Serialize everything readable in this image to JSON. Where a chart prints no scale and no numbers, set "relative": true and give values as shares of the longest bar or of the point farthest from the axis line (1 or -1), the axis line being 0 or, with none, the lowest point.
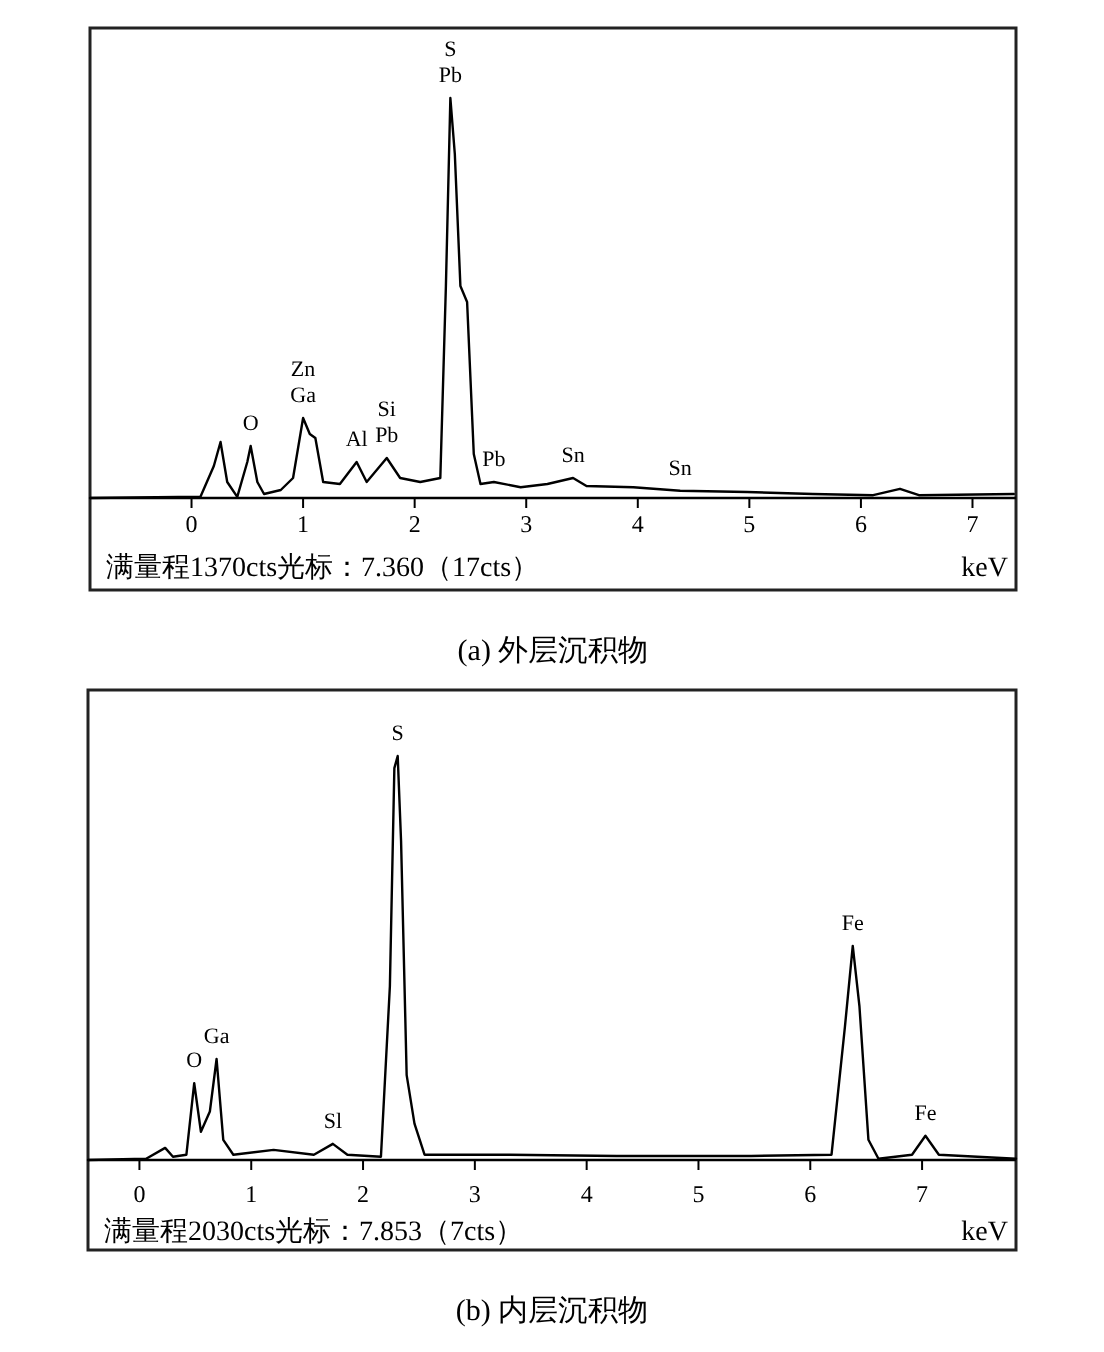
{
  "chart_data": [
    {
      "type": "line",
      "title": "(a) 外层沉积物",
      "xlabel": "keV",
      "relative": true,
      "color": "#000000",
      "xlim": [
        -0.91,
        7.39
      ],
      "xticks": [
        0,
        1,
        2,
        3,
        4,
        5,
        6,
        7
      ],
      "x": [
        -0.91,
        0.08,
        0.2,
        0.26,
        0.32,
        0.41,
        0.5,
        0.53,
        0.59,
        0.65,
        0.8,
        0.91,
        1.0,
        1.06,
        1.11,
        1.18,
        1.33,
        1.48,
        1.57,
        1.75,
        1.87,
        2.05,
        2.23,
        2.28,
        2.32,
        2.36,
        2.41,
        2.47,
        2.53,
        2.59,
        2.71,
        2.95,
        3.19,
        3.42,
        3.54,
        3.96,
        4.38,
        4.98,
        5.57,
        6.11,
        6.35,
        6.52,
        7.37
      ],
      "values": [
        0,
        0.003,
        0.08,
        0.14,
        0.04,
        0.003,
        0.09,
        0.13,
        0.04,
        0.01,
        0.02,
        0.05,
        0.2,
        0.16,
        0.15,
        0.04,
        0.035,
        0.09,
        0.04,
        0.1,
        0.05,
        0.04,
        0.05,
        0.53,
        1.0,
        0.86,
        0.53,
        0.49,
        0.11,
        0.035,
        0.04,
        0.027,
        0.035,
        0.05,
        0.03,
        0.027,
        0.018,
        0.015,
        0.01,
        0.007,
        0.023,
        0.007,
        0.01
      ],
      "annotations": [
        "满量程1370cts光标：7.360（17cts）",
        {
          "text": "O",
          "x": 0.53,
          "y": 0.13
        },
        {
          "text": "Ga",
          "x": 1.0,
          "y": 0.2
        },
        {
          "text": "Zn",
          "x": 1.0,
          "y": 0.2
        },
        {
          "text": "Al",
          "x": 1.48,
          "y": 0.09
        },
        {
          "text": "Pb",
          "x": 1.75,
          "y": 0.1
        },
        {
          "text": "Si",
          "x": 1.75,
          "y": 0.1
        },
        {
          "text": "Pb",
          "x": 2.32,
          "y": 1.0
        },
        {
          "text": "S",
          "x": 2.32,
          "y": 1.0
        },
        {
          "text": "Pb",
          "x": 2.71,
          "y": 0.04
        },
        {
          "text": "Sn",
          "x": 3.42,
          "y": 0.05
        },
        {
          "text": "Sn",
          "x": 4.38,
          "y": 0.018
        }
      ]
    },
    {
      "type": "line",
      "title": "(b) 内层沉积物",
      "xlabel": "keV",
      "relative": true,
      "color": "#000000",
      "xlim": [
        -0.46,
        7.84
      ],
      "xticks": [
        0,
        1,
        2,
        3,
        4,
        5,
        6,
        7
      ],
      "x": [
        -0.46,
        0.06,
        0.23,
        0.3,
        0.42,
        0.49,
        0.55,
        0.63,
        0.69,
        0.75,
        0.84,
        1.2,
        1.56,
        1.73,
        1.86,
        2.16,
        2.24,
        2.28,
        2.31,
        2.34,
        2.39,
        2.46,
        2.55,
        3.31,
        4.27,
        5.47,
        6.19,
        6.31,
        6.38,
        6.44,
        6.52,
        6.61,
        6.91,
        7.03,
        7.15,
        7.84
      ],
      "values": [
        0,
        0.003,
        0.03,
        0.008,
        0.013,
        0.19,
        0.07,
        0.12,
        0.25,
        0.05,
        0.013,
        0.025,
        0.013,
        0.04,
        0.013,
        0.008,
        0.43,
        0.97,
        1.0,
        0.79,
        0.21,
        0.09,
        0.013,
        0.013,
        0.01,
        0.01,
        0.013,
        0.33,
        0.53,
        0.38,
        0.05,
        0.003,
        0.013,
        0.06,
        0.013,
        0.003
      ],
      "annotations": [
        "满量程2030cts光标：7.853（7cts）",
        {
          "text": "O",
          "x": 0.49,
          "y": 0.19
        },
        {
          "text": "Ga",
          "x": 0.69,
          "y": 0.25
        },
        {
          "text": "Sl",
          "x": 1.73,
          "y": 0.04
        },
        {
          "text": "S",
          "x": 2.31,
          "y": 1.0
        },
        {
          "text": "Fe",
          "x": 6.38,
          "y": 0.53
        },
        {
          "text": "Fe",
          "x": 7.03,
          "y": 0.06
        }
      ]
    }
  ]
}
